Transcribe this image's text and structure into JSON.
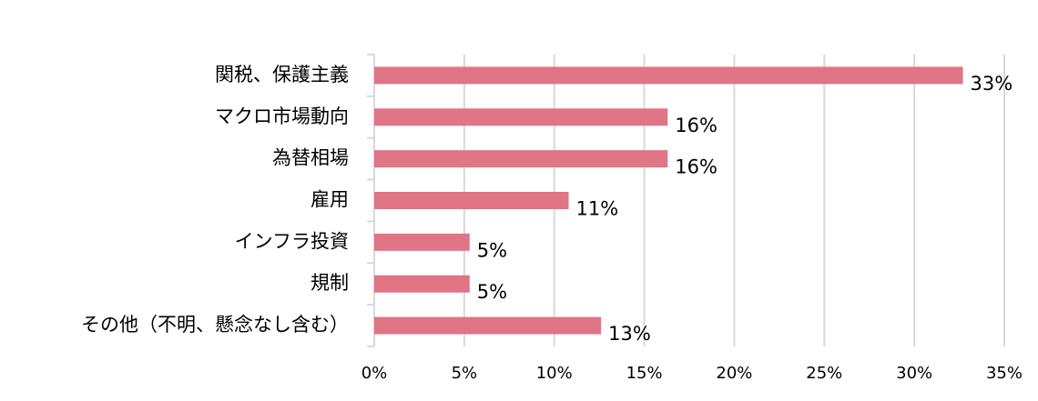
{
  "chart_data": {
    "type": "bar",
    "orientation": "horizontal",
    "categories": [
      "関税、保護主義",
      "マクロ市場動向",
      "為替相場",
      "雇用",
      "インフラ投資",
      "規制",
      "その他（不明、懸念なし含む）"
    ],
    "values": [
      32.7,
      16.3,
      16.3,
      10.8,
      5.3,
      5.3,
      12.6
    ],
    "value_labels": [
      "33%",
      "16%",
      "16%",
      "11%",
      "5%",
      "5%",
      "13%"
    ],
    "color": "#e07585",
    "xlim": [
      0,
      35
    ],
    "xticks": [
      {
        "value": 0,
        "label": "0%"
      },
      {
        "value": 5,
        "label": "5%"
      },
      {
        "value": 10,
        "label": "10%"
      },
      {
        "value": 15,
        "label": "15%"
      },
      {
        "value": 20,
        "label": "20%"
      },
      {
        "value": 25,
        "label": "25%"
      },
      {
        "value": 30,
        "label": "30%"
      },
      {
        "value": 35,
        "label": "35%"
      }
    ],
    "grid": true
  }
}
